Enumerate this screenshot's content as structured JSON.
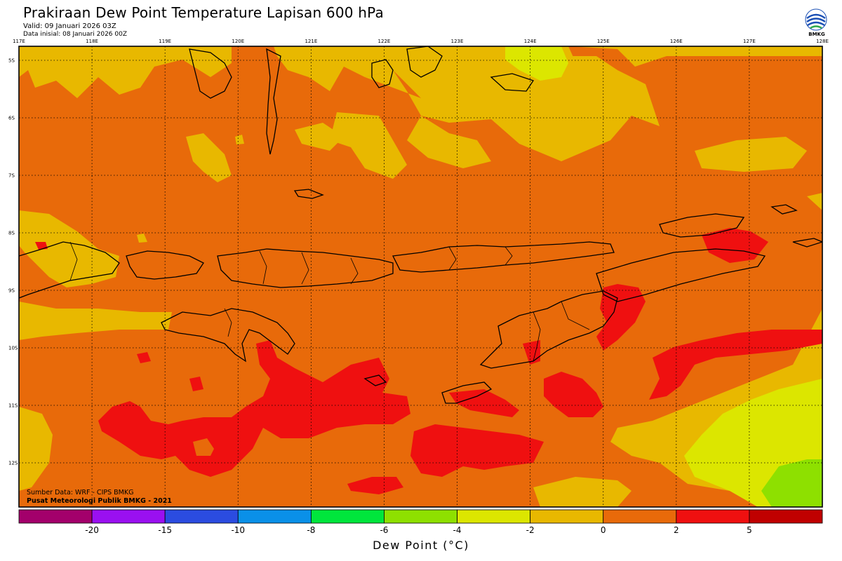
{
  "header": {
    "title": "Prakiraan Dew Point Temperature Lapisan 600 hPa",
    "valid": "Valid: 09 Januari 2026 03Z",
    "init": "Data inisial: 08 Januari 2026 00Z"
  },
  "logo": {
    "icon": "bmkg-logo-icon",
    "text": "BMKG"
  },
  "map": {
    "lon_ticks": [
      "117E",
      "118E",
      "119E",
      "120E",
      "121E",
      "122E",
      "123E",
      "124E",
      "125E",
      "126E",
      "127E",
      "128E"
    ],
    "lat_ticks": [
      "5S",
      "6S",
      "7S",
      "8S",
      "9S",
      "10S",
      "11S",
      "12S"
    ],
    "grid": true
  },
  "credits": {
    "source": "Sumber Data: WRF - CIPS BMKG",
    "org": "Pusat Meteorologi Publik BMKG - 2021"
  },
  "colorbar": {
    "title": "Dew Point (°C)",
    "labels": [
      "-20",
      "-15",
      "-10",
      "-8",
      "-6",
      "-4",
      "-2",
      "0",
      "2",
      "5"
    ],
    "colors": [
      "#a3006b",
      "#9a10f0",
      "#2b4ce0",
      "#0a90e8",
      "#00e63c",
      "#8ee000",
      "#dce600",
      "#e8b800",
      "#e86a0a",
      "#ef1010",
      "#c00000"
    ]
  },
  "palette": {
    "background": "#e86a0a",
    "ocean_land_lines": "#000000"
  }
}
